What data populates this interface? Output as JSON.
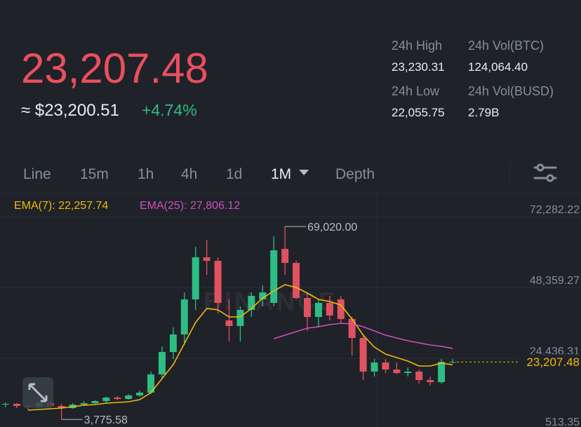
{
  "header": {
    "price": "23,207.48",
    "fiat_price": "≈ $23,200.51",
    "change": "+4.74%",
    "stats": [
      {
        "label": "24h High",
        "value": "23,230.31"
      },
      {
        "label": "24h Vol(BTC)",
        "value": "124,064.40"
      },
      {
        "label": "24h Low",
        "value": "22,055.75"
      },
      {
        "label": "24h Vol(BUSD)",
        "value": "2.79B"
      }
    ]
  },
  "tabs": {
    "items": [
      "Line",
      "15m",
      "1h",
      "4h",
      "1d",
      "1M",
      "Depth"
    ],
    "active": "1M"
  },
  "chart_data": {
    "type": "candlestick",
    "watermark": "BINANCE",
    "colors": {
      "up": "#2ebd85",
      "down": "#e0525f"
    },
    "open": [
      8810,
      9050,
      8330,
      8100,
      9520,
      8330,
      7620,
      8810,
      9280,
      9990,
      11180,
      10700,
      11890,
      12840,
      19000,
      26580,
      32510,
      44360,
      58580,
      57390,
      37250,
      35350,
      40800,
      44360,
      43170,
      61420,
      56680,
      44830,
      38430,
      43170,
      44360,
      37720,
      31320,
      19950,
      23030,
      20660,
      19470,
      19950,
      17100,
      16390,
      23030
    ],
    "high": [
      9520,
      9280,
      9050,
      9990,
      9760,
      9050,
      9280,
      9990,
      10230,
      11420,
      11650,
      12360,
      13550,
      19950,
      28480,
      34880,
      46730,
      62130,
      64500,
      58580,
      44360,
      41990,
      46730,
      49100,
      65690,
      69020,
      57390,
      46730,
      44360,
      45540,
      45540,
      38430,
      32510,
      24210,
      24210,
      23030,
      21370,
      20660,
      18290,
      24210,
      24210
    ],
    "low": [
      7860,
      7620,
      7150,
      7860,
      7860,
      3775.58,
      7390,
      8570,
      9050,
      9520,
      10230,
      10470,
      11420,
      12360,
      17580,
      24210,
      28950,
      40800,
      52650,
      39620,
      30140,
      30140,
      38430,
      41990,
      41990,
      52650,
      44360,
      33690,
      34880,
      37250,
      36060,
      25400,
      17100,
      18290,
      19470,
      19000,
      18290,
      15920,
      15210,
      15920,
      22790
    ],
    "close": [
      9050,
      8330,
      8100,
      9520,
      8330,
      7620,
      8810,
      9280,
      9990,
      11180,
      10700,
      11890,
      12840,
      19000,
      26580,
      32510,
      44360,
      58580,
      57390,
      43170,
      35350,
      40800,
      45540,
      46730,
      60950,
      56680,
      44830,
      38430,
      43170,
      38910,
      37720,
      31320,
      19950,
      23030,
      20660,
      19470,
      19950,
      17100,
      16390,
      23270,
      23207.48
    ],
    "series": [
      {
        "name": "EMA(7)",
        "legend_label": "EMA(7): 22,257.74",
        "color": "#f0b90b",
        "values": [
          null,
          null,
          6912,
          7149,
          7386,
          7623,
          8097,
          8571,
          8808,
          9282,
          9519,
          9756,
          10467,
          12837,
          17577,
          22317,
          29427,
          36537,
          41277,
          40803,
          38433,
          38433,
          41277,
          44832,
          47202,
          49335,
          48387,
          46491,
          44358,
          43647,
          42462,
          37722,
          32271,
          28242,
          25872,
          24687,
          23502,
          21843,
          21843,
          22791,
          22257.74
        ]
      },
      {
        "name": "EMA(25)",
        "legend_label": "EMA(25): 27,806.12",
        "color": "#d04fbf",
        "values": [
          null,
          null,
          null,
          null,
          null,
          null,
          null,
          null,
          null,
          null,
          null,
          null,
          null,
          null,
          null,
          null,
          null,
          null,
          null,
          null,
          null,
          null,
          null,
          null,
          31086,
          32271,
          33456,
          34641,
          35115,
          35826,
          36300,
          36063,
          35115,
          33693,
          32271,
          31323,
          30375,
          29664,
          28953,
          28479,
          27806.12
        ]
      }
    ],
    "ylim": [
      1224,
      80150
    ],
    "yticks": [
      {
        "value": 513.35,
        "label": "513.35"
      },
      {
        "value": 24436.31,
        "label": "24,436.31"
      },
      {
        "value": 48359.27,
        "label": "48,359.27"
      },
      {
        "value": 72282.22,
        "label": "72,282.22"
      }
    ],
    "grid": true,
    "price_line": {
      "value": 23207.48,
      "label": "23,207.48",
      "color": "#f0b90b"
    },
    "annotations": [
      {
        "value": 69020,
        "label": "69,020.00"
      },
      {
        "value": 3775.58,
        "label": "3,775.58"
      }
    ]
  }
}
